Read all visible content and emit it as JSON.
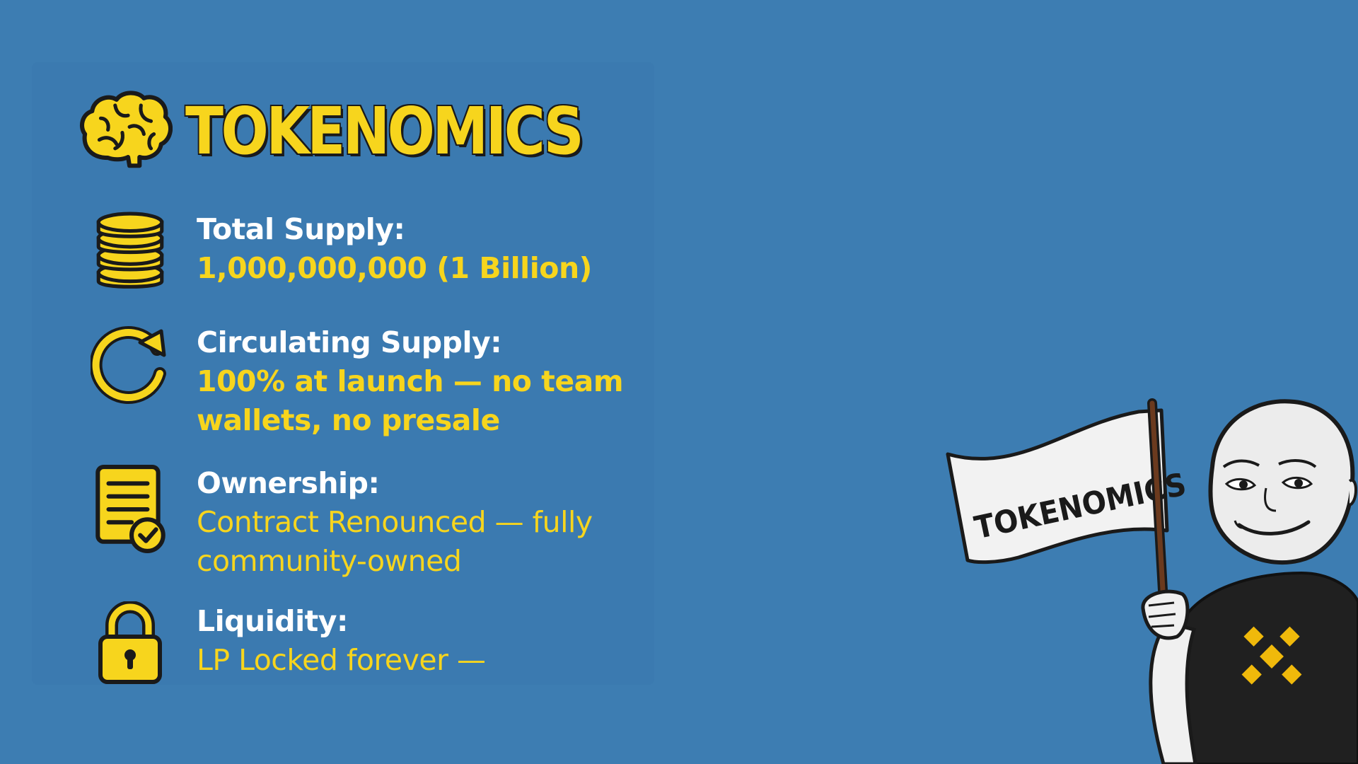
{
  "title": "TOKENOMICS",
  "items": [
    {
      "label": "Total Supply:",
      "value": "1,000,000,000 (1 Billion)",
      "icon": "coin-stack-icon"
    },
    {
      "label": "Circulating Supply:",
      "value": "100% at launch — no team\nwallets, no presale",
      "icon": "refresh-icon"
    },
    {
      "label": "Ownership:",
      "value": "Contract Renounced — fully\ncommunity-owned",
      "icon": "document-check-icon"
    },
    {
      "label": "Liquidity:",
      "value": "LP Locked forever —",
      "icon": "padlock-icon"
    }
  ],
  "flag_text": "TOKENOMICS",
  "colors": {
    "background": "#3d7db2",
    "accent": "#f7d51d",
    "label": "#ffffff",
    "outline": "#1a1a1a"
  }
}
